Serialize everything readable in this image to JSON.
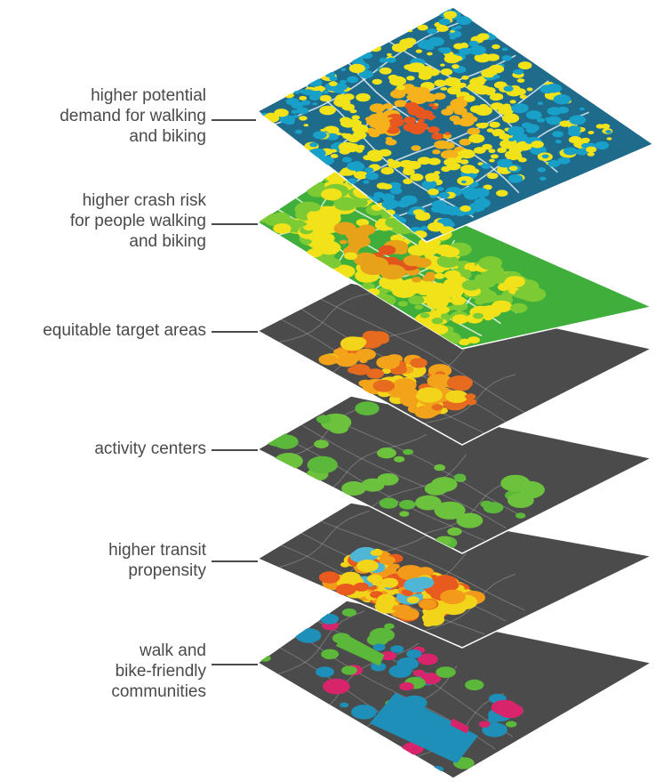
{
  "layers": [
    {
      "id": "walking-demand",
      "label_lines": [
        "higher potential",
        "demand for walking",
        "and biking"
      ],
      "base": "#1f6b8c",
      "palette": [
        "#18a0c8",
        "#f2e21a",
        "#f6b21a",
        "#e8581e"
      ],
      "style": "dense"
    },
    {
      "id": "crash-risk",
      "label_lines": [
        "higher crash risk",
        "for people walking",
        "and biking"
      ],
      "base": "#3fae3a",
      "palette": [
        "#7ccb35",
        "#f2e21a",
        "#e8a21a",
        "#e2561e"
      ],
      "style": "medium"
    },
    {
      "id": "equity",
      "label_lines": [
        "equitable target areas"
      ],
      "base": "#4b4b4b",
      "palette": [
        "#f2d41a",
        "#f2a31a",
        "#e76b1e"
      ],
      "style": "cluster"
    },
    {
      "id": "activity",
      "label_lines": [
        "activity centers"
      ],
      "base": "#4b4b4b",
      "palette": [
        "#5cb83a",
        "#6cc23c"
      ],
      "style": "sparse"
    },
    {
      "id": "transit",
      "label_lines": [
        "higher transit",
        "propensity"
      ],
      "base": "#4b4b4b",
      "palette": [
        "#f2d41a",
        "#f39a1a",
        "#e85a1e",
        "#4fb6d6"
      ],
      "style": "network"
    },
    {
      "id": "communities",
      "label_lines": [
        "walk and",
        "bike-friendly",
        "communities"
      ],
      "base": "#4b4b4b",
      "palette": [
        "#1e8fb8",
        "#5cb83a",
        "#d8246a"
      ],
      "style": "regions"
    }
  ]
}
